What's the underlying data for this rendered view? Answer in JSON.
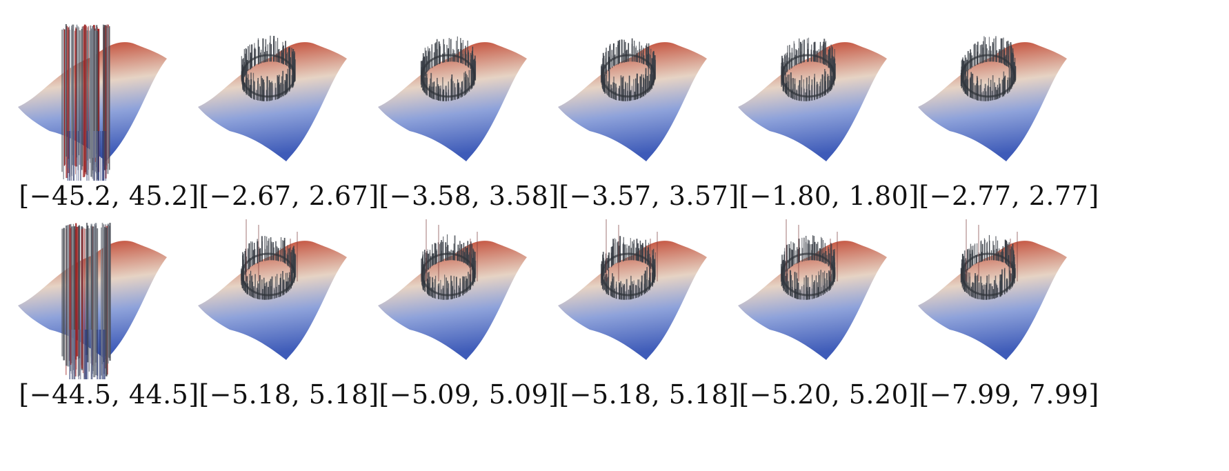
{
  "panels": [
    {
      "row": 0,
      "col": 0,
      "range_label": "[−45.2, 45.2]",
      "range": [
        -45.2,
        45.2
      ],
      "spikes": "extreme"
    },
    {
      "row": 0,
      "col": 1,
      "range_label": "[−2.67, 2.67]",
      "range": [
        -2.67,
        2.67
      ],
      "spikes": "ring"
    },
    {
      "row": 0,
      "col": 2,
      "range_label": "[−3.58, 3.58]",
      "range": [
        -3.58,
        3.58
      ],
      "spikes": "ring"
    },
    {
      "row": 0,
      "col": 3,
      "range_label": "[−3.57, 3.57]",
      "range": [
        -3.57,
        3.57
      ],
      "spikes": "ring"
    },
    {
      "row": 0,
      "col": 4,
      "range_label": "[−1.80, 1.80]",
      "range": [
        -1.8,
        1.8
      ],
      "spikes": "ring"
    },
    {
      "row": 0,
      "col": 5,
      "range_label": "[−2.77, 2.77]",
      "range": [
        -2.77,
        2.77
      ],
      "spikes": "ring"
    },
    {
      "row": 1,
      "col": 0,
      "range_label": "[−44.5, 44.5]",
      "range": [
        -44.5,
        44.5
      ],
      "spikes": "extreme"
    },
    {
      "row": 1,
      "col": 1,
      "range_label": "[−5.18, 5.18]",
      "range": [
        -5.18,
        5.18
      ],
      "spikes": "ring-tall"
    },
    {
      "row": 1,
      "col": 2,
      "range_label": "[−5.09, 5.09]",
      "range": [
        -5.09,
        5.09
      ],
      "spikes": "ring-tall"
    },
    {
      "row": 1,
      "col": 3,
      "range_label": "[−5.18, 5.18]",
      "range": [
        -5.18,
        5.18
      ],
      "spikes": "ring-tall"
    },
    {
      "row": 1,
      "col": 4,
      "range_label": "[−5.20, 5.20]",
      "range": [
        -5.2,
        5.2
      ],
      "spikes": "ring-tall"
    },
    {
      "row": 1,
      "col": 5,
      "range_label": "[−7.99, 7.99]",
      "range": [
        -7.99,
        7.99
      ],
      "spikes": "ring-tall"
    }
  ],
  "colors": {
    "surface_high": "#c0432e",
    "surface_mid": "#e6d3c4",
    "surface_low": "#3e5bb8",
    "spike": "#3a3f47"
  }
}
